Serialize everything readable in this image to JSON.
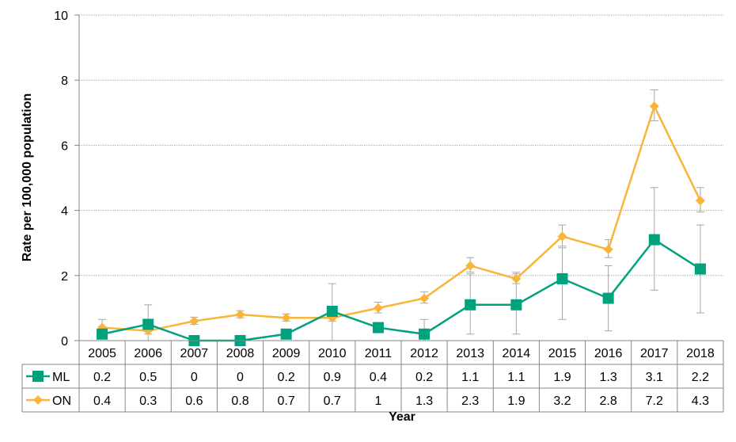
{
  "chart_data": {
    "type": "line",
    "categories": [
      "2005",
      "2006",
      "2007",
      "2008",
      "2009",
      "2010",
      "2011",
      "2012",
      "2013",
      "2014",
      "2015",
      "2016",
      "2017",
      "2018"
    ],
    "series": [
      {
        "name": "ML",
        "color": "#00a27e",
        "marker": "square",
        "values": [
          0.2,
          0.5,
          0,
          0,
          0.2,
          0.9,
          0.4,
          0.2,
          1.1,
          1.1,
          1.9,
          1.3,
          3.1,
          2.2
        ],
        "table_values": [
          "0.2",
          "0.5",
          "0",
          "0",
          "0.2",
          "0.9",
          "0.4",
          "0.2",
          "1.1",
          "1.1",
          "1.9",
          "1.3",
          "3.1",
          "2.2"
        ],
        "ci_low": [
          null,
          0,
          null,
          null,
          null,
          0,
          null,
          0,
          0.2,
          0.2,
          0.65,
          0.3,
          1.55,
          0.85
        ],
        "ci_high": [
          null,
          1.1,
          null,
          null,
          null,
          1.75,
          null,
          0.65,
          2.05,
          2.05,
          2.85,
          2.3,
          4.7,
          3.55
        ]
      },
      {
        "name": "ON",
        "color": "#f9b43a",
        "marker": "diamond",
        "values": [
          0.4,
          0.3,
          0.6,
          0.8,
          0.7,
          0.7,
          1,
          1.3,
          2.3,
          1.9,
          3.2,
          2.8,
          7.2,
          4.3
        ],
        "table_values": [
          "0.4",
          "0.3",
          "0.6",
          "0.8",
          "0.7",
          "0.7",
          "1",
          "1.3",
          "2.3",
          "1.9",
          "3.2",
          "2.8",
          "7.2",
          "4.3"
        ],
        "ci_low": [
          0.2,
          0.2,
          0.5,
          0.7,
          0.6,
          0.6,
          0.85,
          1.15,
          2.1,
          1.75,
          2.9,
          2.55,
          6.75,
          3.95
        ],
        "ci_high": [
          0.65,
          0.45,
          0.72,
          0.92,
          0.82,
          0.82,
          1.18,
          1.5,
          2.55,
          2.1,
          3.55,
          3.1,
          7.7,
          4.7
        ]
      }
    ],
    "ylabel": "Rate per 100,000 population",
    "xlabel": "Year",
    "ylim": [
      0,
      10
    ],
    "yticks": [
      "0",
      "2",
      "4",
      "6",
      "8",
      "10"
    ],
    "grid": true,
    "legend": "data-table-left",
    "gridColor": "#a6a6a6",
    "axisColor": "#868686",
    "errorBarColor": "#a6a6a6"
  }
}
